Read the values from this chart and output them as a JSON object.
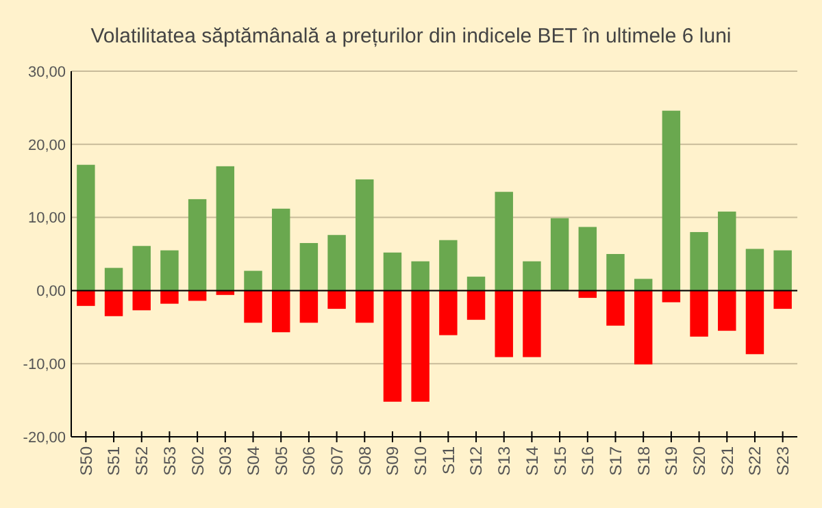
{
  "chart_data": {
    "type": "bar",
    "title": "Volatilitatea săptămânală a prețurilor din indicele BET în ultimele 6 luni",
    "stacked": true,
    "grid": "y",
    "categories": [
      "S50",
      "S51",
      "S52",
      "S53",
      "S02",
      "S03",
      "S04",
      "S05",
      "S06",
      "S07",
      "S08",
      "S09",
      "S10",
      "S11",
      "S12",
      "S13",
      "S14",
      "S15",
      "S16",
      "S17",
      "S18",
      "S19",
      "S20",
      "S21",
      "S22",
      "S23"
    ],
    "series": [
      {
        "color": "#6aa84f",
        "values": [
          17.2,
          3.1,
          6.1,
          5.5,
          12.5,
          17.0,
          2.7,
          11.2,
          6.5,
          7.6,
          15.2,
          5.2,
          4.0,
          6.9,
          1.9,
          13.5,
          4.0,
          9.9,
          8.7,
          5.0,
          1.6,
          24.6,
          8.0,
          10.8,
          5.7,
          5.5
        ]
      },
      {
        "color": "#ff0000",
        "values": [
          -2.1,
          -3.5,
          -2.7,
          -1.8,
          -1.4,
          -0.6,
          -4.4,
          -5.7,
          -4.4,
          -2.5,
          -4.4,
          -15.2,
          -15.2,
          -6.1,
          -4.0,
          -9.1,
          -9.1,
          0,
          -1.0,
          -4.8,
          -10.1,
          -1.6,
          -6.3,
          -5.5,
          -8.7,
          -2.5
        ]
      }
    ],
    "ylim": [
      -20,
      30
    ],
    "yticks": [
      {
        "value": -20,
        "label": "-20,00"
      },
      {
        "value": -10,
        "label": "-10,00"
      },
      {
        "value": 0,
        "label": "0,00"
      },
      {
        "value": 10,
        "label": "10,00"
      },
      {
        "value": 20,
        "label": "20,00"
      },
      {
        "value": 30,
        "label": "30,00"
      }
    ]
  }
}
